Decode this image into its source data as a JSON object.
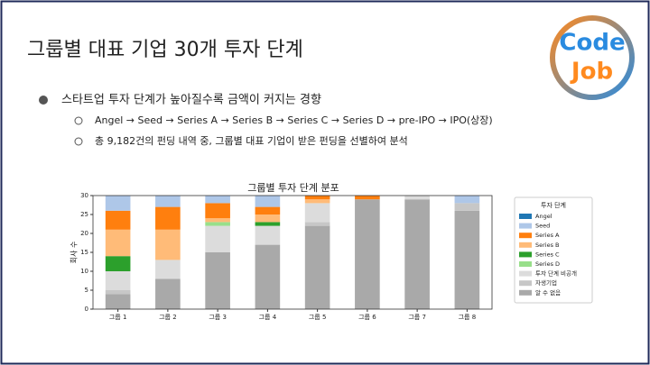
{
  "slide": {
    "title": "그룹별 대표 기업 30개 투자 단계",
    "logo": [
      "Code",
      "Job"
    ],
    "bullet": "스타트업 투자 단계가 높아질수록 금액이 커지는 경향",
    "sub_bullets": [
      "Angel → Seed → Series A → Series B → Series C → Series D → pre-IPO → IPO(상장)",
      "총 9,182건의 펀딩 내역 중, 그룹별 대표 기업이 받은 펀딩을 선별하여 분석"
    ]
  },
  "chart_data": {
    "type": "stacked_bar",
    "title": "그룹별 투자 단계 분포",
    "y_label": "회사 수",
    "legend_title": "투자 단계",
    "categories": [
      "그룹 1",
      "그룹 2",
      "그룹 3",
      "그룹 4",
      "그룹 5",
      "그룹 6",
      "그룹 7",
      "그룹 8"
    ],
    "series": [
      {
        "name": "알 수 없음",
        "color": "#a9a9a9",
        "values": [
          4,
          8,
          15,
          17,
          22,
          29,
          29,
          26
        ]
      },
      {
        "name": "자생기업",
        "color": "#c7c7c7",
        "values": [
          1,
          0,
          0,
          0,
          1,
          0,
          0,
          2
        ]
      },
      {
        "name": "투자 단계 비공개",
        "color": "#dcdcdc",
        "values": [
          5,
          5,
          7,
          5,
          5,
          0,
          1,
          0
        ]
      },
      {
        "name": "Series D",
        "color": "#98df8a",
        "values": [
          0,
          0,
          1,
          0,
          0,
          0,
          0,
          0
        ]
      },
      {
        "name": "Series C",
        "color": "#2ca02c",
        "values": [
          4,
          0,
          0,
          1,
          0,
          0,
          0,
          0
        ]
      },
      {
        "name": "Series B",
        "color": "#ffbb78",
        "values": [
          7,
          8,
          1,
          2,
          1,
          0,
          0,
          0
        ]
      },
      {
        "name": "Series A",
        "color": "#ff7f0e",
        "values": [
          5,
          6,
          4,
          2,
          1,
          1,
          0,
          0
        ]
      },
      {
        "name": "Seed",
        "color": "#aec7e8",
        "values": [
          4,
          3,
          2,
          3,
          0,
          0,
          0,
          2
        ]
      },
      {
        "name": "Angel",
        "color": "#1f77b4",
        "values": [
          0,
          0,
          0,
          0,
          0,
          0,
          0,
          0
        ]
      }
    ],
    "ylim": [
      0,
      30
    ],
    "yticks": [
      0,
      5,
      10,
      15,
      20,
      25,
      30
    ],
    "legend": "right"
  }
}
